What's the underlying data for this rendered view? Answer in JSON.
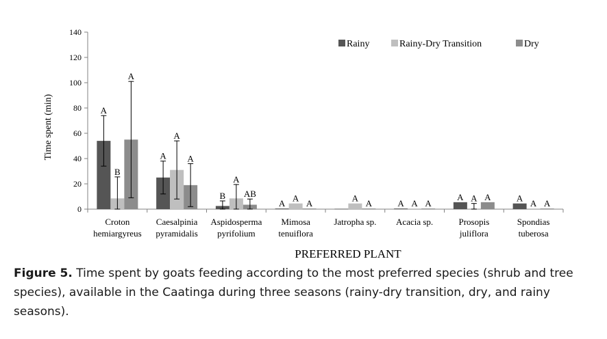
{
  "chart_data": {
    "type": "bar",
    "xlabel": "PREFERRED PLANT",
    "ylabel": "Time spent (min)",
    "ylim": [
      0,
      140
    ],
    "yticks": [
      0,
      20,
      40,
      60,
      80,
      100,
      120,
      140
    ],
    "legend_position": "top-right",
    "categories": [
      [
        "Croton",
        "hemiargyreus"
      ],
      [
        "Caesalpinia",
        "pyramidalis"
      ],
      [
        "Aspidosperma",
        "pyrifolium"
      ],
      [
        "Mimosa",
        "tenuiflora"
      ],
      [
        "Jatropha sp."
      ],
      [
        "Acacia sp."
      ],
      [
        "Prosopis",
        "juliflora"
      ],
      [
        "Spondias",
        "tuberosa"
      ]
    ],
    "series": [
      {
        "name": "Rainy",
        "color": "#555555",
        "values": [
          54,
          25,
          2.5,
          0.5,
          0.3,
          0.5,
          5.5,
          4.5
        ],
        "errors": [
          20,
          13,
          4,
          0,
          0,
          0,
          0,
          0
        ],
        "letters": [
          "A",
          "A",
          "B",
          "A",
          "",
          "A",
          "A",
          "A"
        ]
      },
      {
        "name": "Rainy-Dry Transition",
        "color": "#bfbfbf",
        "values": [
          8.5,
          31,
          8.5,
          4.5,
          4.5,
          0.5,
          0.5,
          0.5
        ],
        "errors": [
          17,
          23,
          11,
          0,
          0,
          0,
          4,
          0
        ],
        "letters": [
          "B",
          "A",
          "A",
          "A",
          "A",
          "A",
          "A",
          "A"
        ]
      },
      {
        "name": "Dry",
        "color": "#8c8c8c",
        "values": [
          55,
          19,
          3.5,
          0.5,
          0.5,
          0.5,
          5.5,
          0.5
        ],
        "errors": [
          46,
          17,
          4.5,
          0,
          0,
          0,
          0,
          0
        ],
        "letters": [
          "A",
          "A",
          "AB",
          "A",
          "A",
          "A",
          "A",
          "A"
        ]
      }
    ]
  },
  "caption": {
    "label": "Figure 5.",
    "text": "Time spent by goats feeding according to the most preferred species (shrub and tree species), available in the Caatinga during three seasons (rainy-dry transition, dry, and rainy seasons)."
  }
}
